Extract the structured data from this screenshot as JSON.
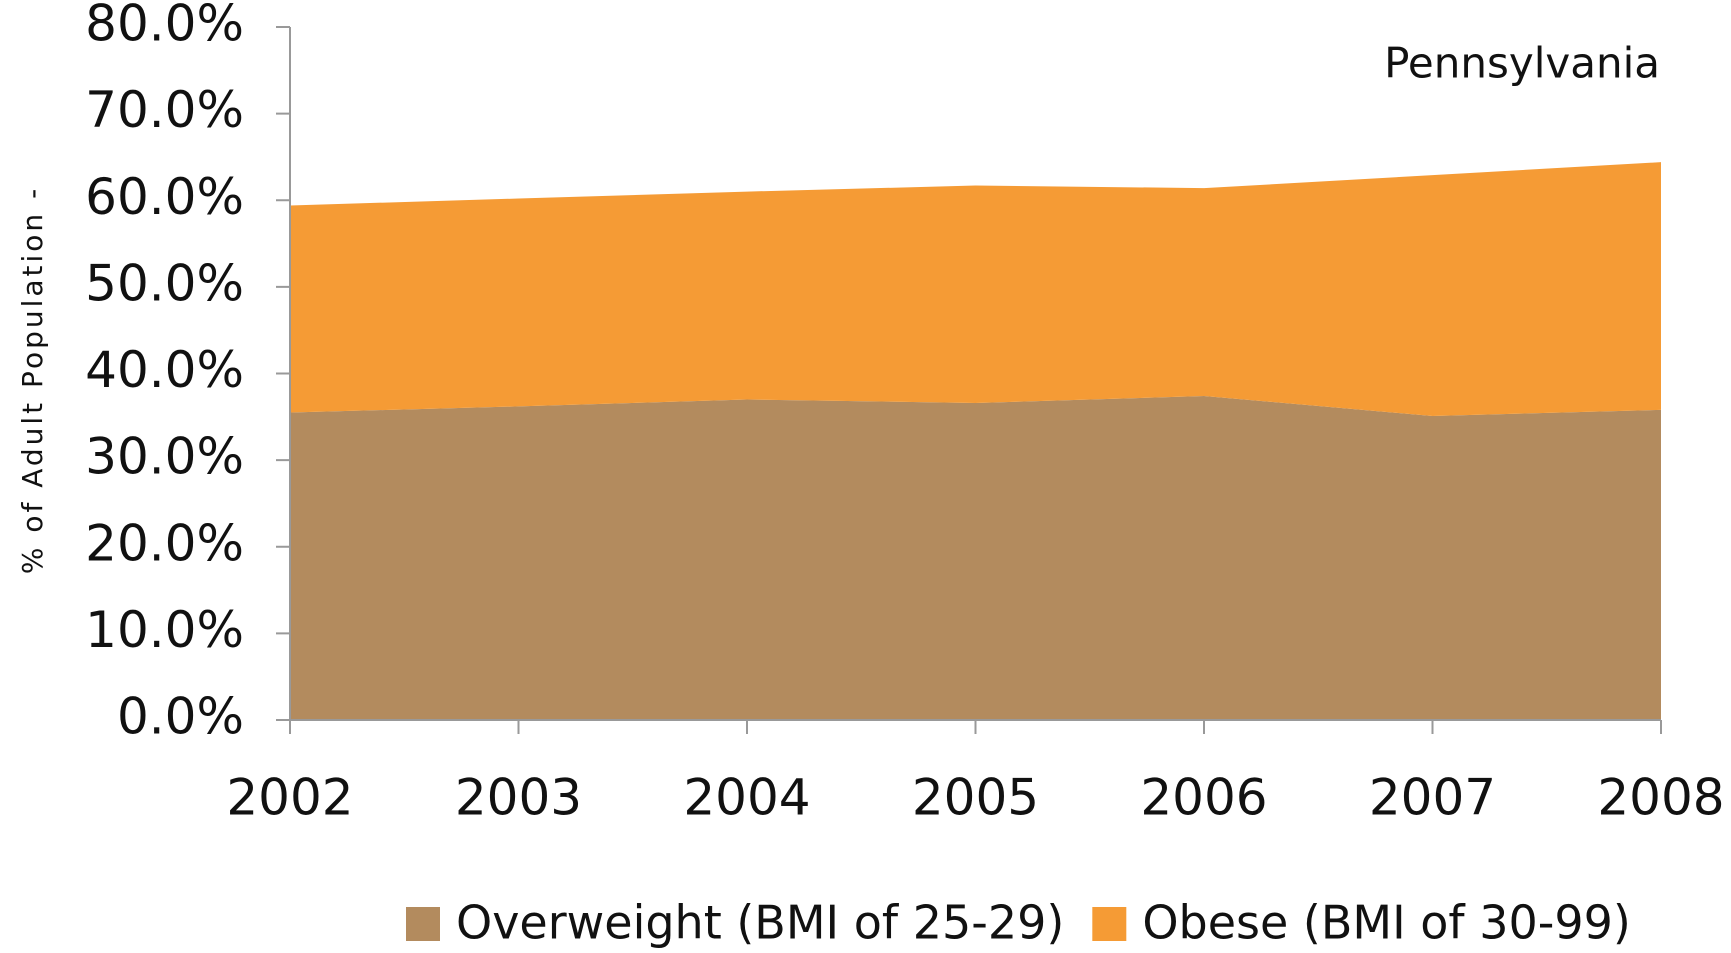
{
  "chart_data": {
    "type": "area",
    "title": "Pennsylvania",
    "y_label": "% of Adult Population -",
    "categories": [
      "2002",
      "2003",
      "2004",
      "2005",
      "2006",
      "2007",
      "2008"
    ],
    "series": [
      {
        "name": "Overweight (BMI of 25-29)",
        "color": "#b38b5e",
        "values": [
          35.5,
          36.2,
          37.0,
          36.6,
          37.4,
          35.1,
          35.8
        ]
      },
      {
        "name": "Obese (BMI of 30-99)",
        "color": "#f59b35",
        "values": [
          23.9,
          24.0,
          24.0,
          25.1,
          24.0,
          27.8,
          28.6
        ]
      }
    ],
    "stacked": true,
    "ylim": [
      0,
      80
    ],
    "yticks": [
      {
        "value": 0,
        "label": "0.0%"
      },
      {
        "value": 10,
        "label": "10.0%"
      },
      {
        "value": 20,
        "label": "20.0%"
      },
      {
        "value": 30,
        "label": "30.0%"
      },
      {
        "value": 40,
        "label": "40.0%"
      },
      {
        "value": 50,
        "label": "50.0%"
      },
      {
        "value": 60,
        "label": "60.0%"
      },
      {
        "value": 70,
        "label": "70.0%"
      },
      {
        "value": 80,
        "label": "80.0%"
      }
    ],
    "legend": "bottom"
  }
}
